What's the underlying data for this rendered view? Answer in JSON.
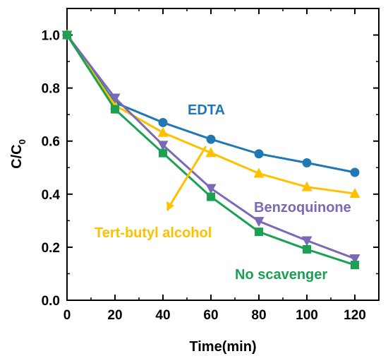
{
  "chart_data": {
    "type": "line",
    "title": "",
    "xlabel": "Time(min)",
    "ylabel_main": "C/C",
    "ylabel_sub": "0",
    "xlim": [
      0,
      130
    ],
    "ylim": [
      0,
      1.1
    ],
    "xticks": [
      0,
      20,
      40,
      60,
      80,
      100,
      120
    ],
    "yticks": [
      0.0,
      0.2,
      0.4,
      0.6,
      0.8,
      1.0
    ],
    "xtick_labels": [
      "0",
      "20",
      "40",
      "60",
      "80",
      "100",
      "120"
    ],
    "ytick_labels": [
      "0.0",
      "0.2",
      "0.4",
      "0.6",
      "0.8",
      "1.0"
    ],
    "grid": false,
    "x": [
      0,
      20,
      40,
      60,
      80,
      100,
      120
    ],
    "series": [
      {
        "name": "EDTA",
        "color": "#1f77b4",
        "marker": "circle",
        "values": [
          1.0,
          0.745,
          0.67,
          0.607,
          0.552,
          0.518,
          0.482
        ]
      },
      {
        "name": "Tert-butyl alcohol",
        "color": "#ffc000",
        "marker": "triangle-up",
        "values": [
          1.0,
          0.735,
          0.632,
          0.556,
          0.478,
          0.427,
          0.402
        ]
      },
      {
        "name": "Benzoquinone",
        "color": "#7b68b6",
        "marker": "triangle-down",
        "values": [
          1.0,
          0.763,
          0.585,
          0.422,
          0.298,
          0.225,
          0.157
        ]
      },
      {
        "name": "No scavenger",
        "color": "#1aa152",
        "marker": "square",
        "values": [
          1.0,
          0.72,
          0.555,
          0.39,
          0.258,
          0.192,
          0.133
        ]
      }
    ],
    "annotations": [
      {
        "text": "EDTA",
        "color": "#1f77b4"
      },
      {
        "text": "Tert-butyl alcohol",
        "color": "#ffc000"
      },
      {
        "text": "Benzoquinone",
        "color": "#7b68b6"
      },
      {
        "text": "No scavenger",
        "color": "#1aa152"
      }
    ]
  }
}
